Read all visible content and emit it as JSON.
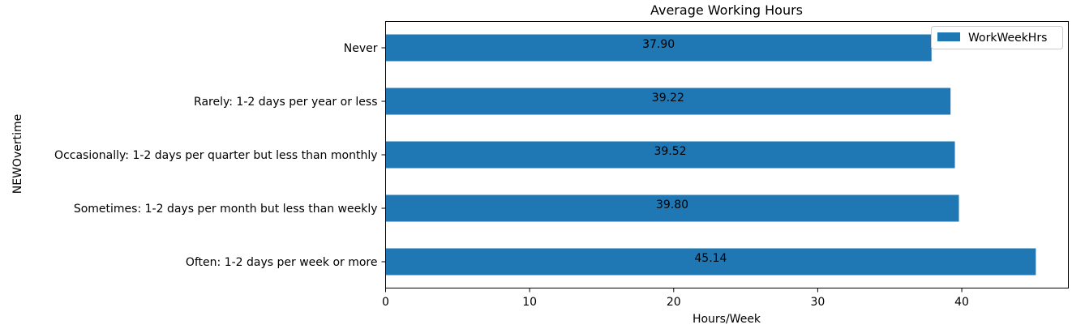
{
  "chart_data": {
    "type": "bar",
    "orientation": "horizontal",
    "title": "Average Working Hours",
    "xlabel": "Hours/Week",
    "ylabel": "NEWOvertime",
    "categories": [
      "Never",
      "Rarely: 1-2 days per year or less",
      "Occasionally: 1-2 days per quarter but less than monthly",
      "Sometimes: 1-2 days per month but less than weekly",
      "Often: 1-2 days per week or more"
    ],
    "series": [
      {
        "name": "WorkWeekHrs",
        "values": [
          37.9,
          39.22,
          39.52,
          39.8,
          45.14
        ],
        "labels": [
          "37.90",
          "39.22",
          "39.52",
          "39.80",
          "45.14"
        ]
      }
    ],
    "xlim": [
      0,
      47.4
    ],
    "xticks": [
      0,
      10,
      20,
      30,
      40
    ],
    "grid": false,
    "legend_position": "top-right",
    "colors": {
      "bar": "#1f77b4",
      "bar_label": "#ffffff",
      "axis": "#000000"
    }
  }
}
